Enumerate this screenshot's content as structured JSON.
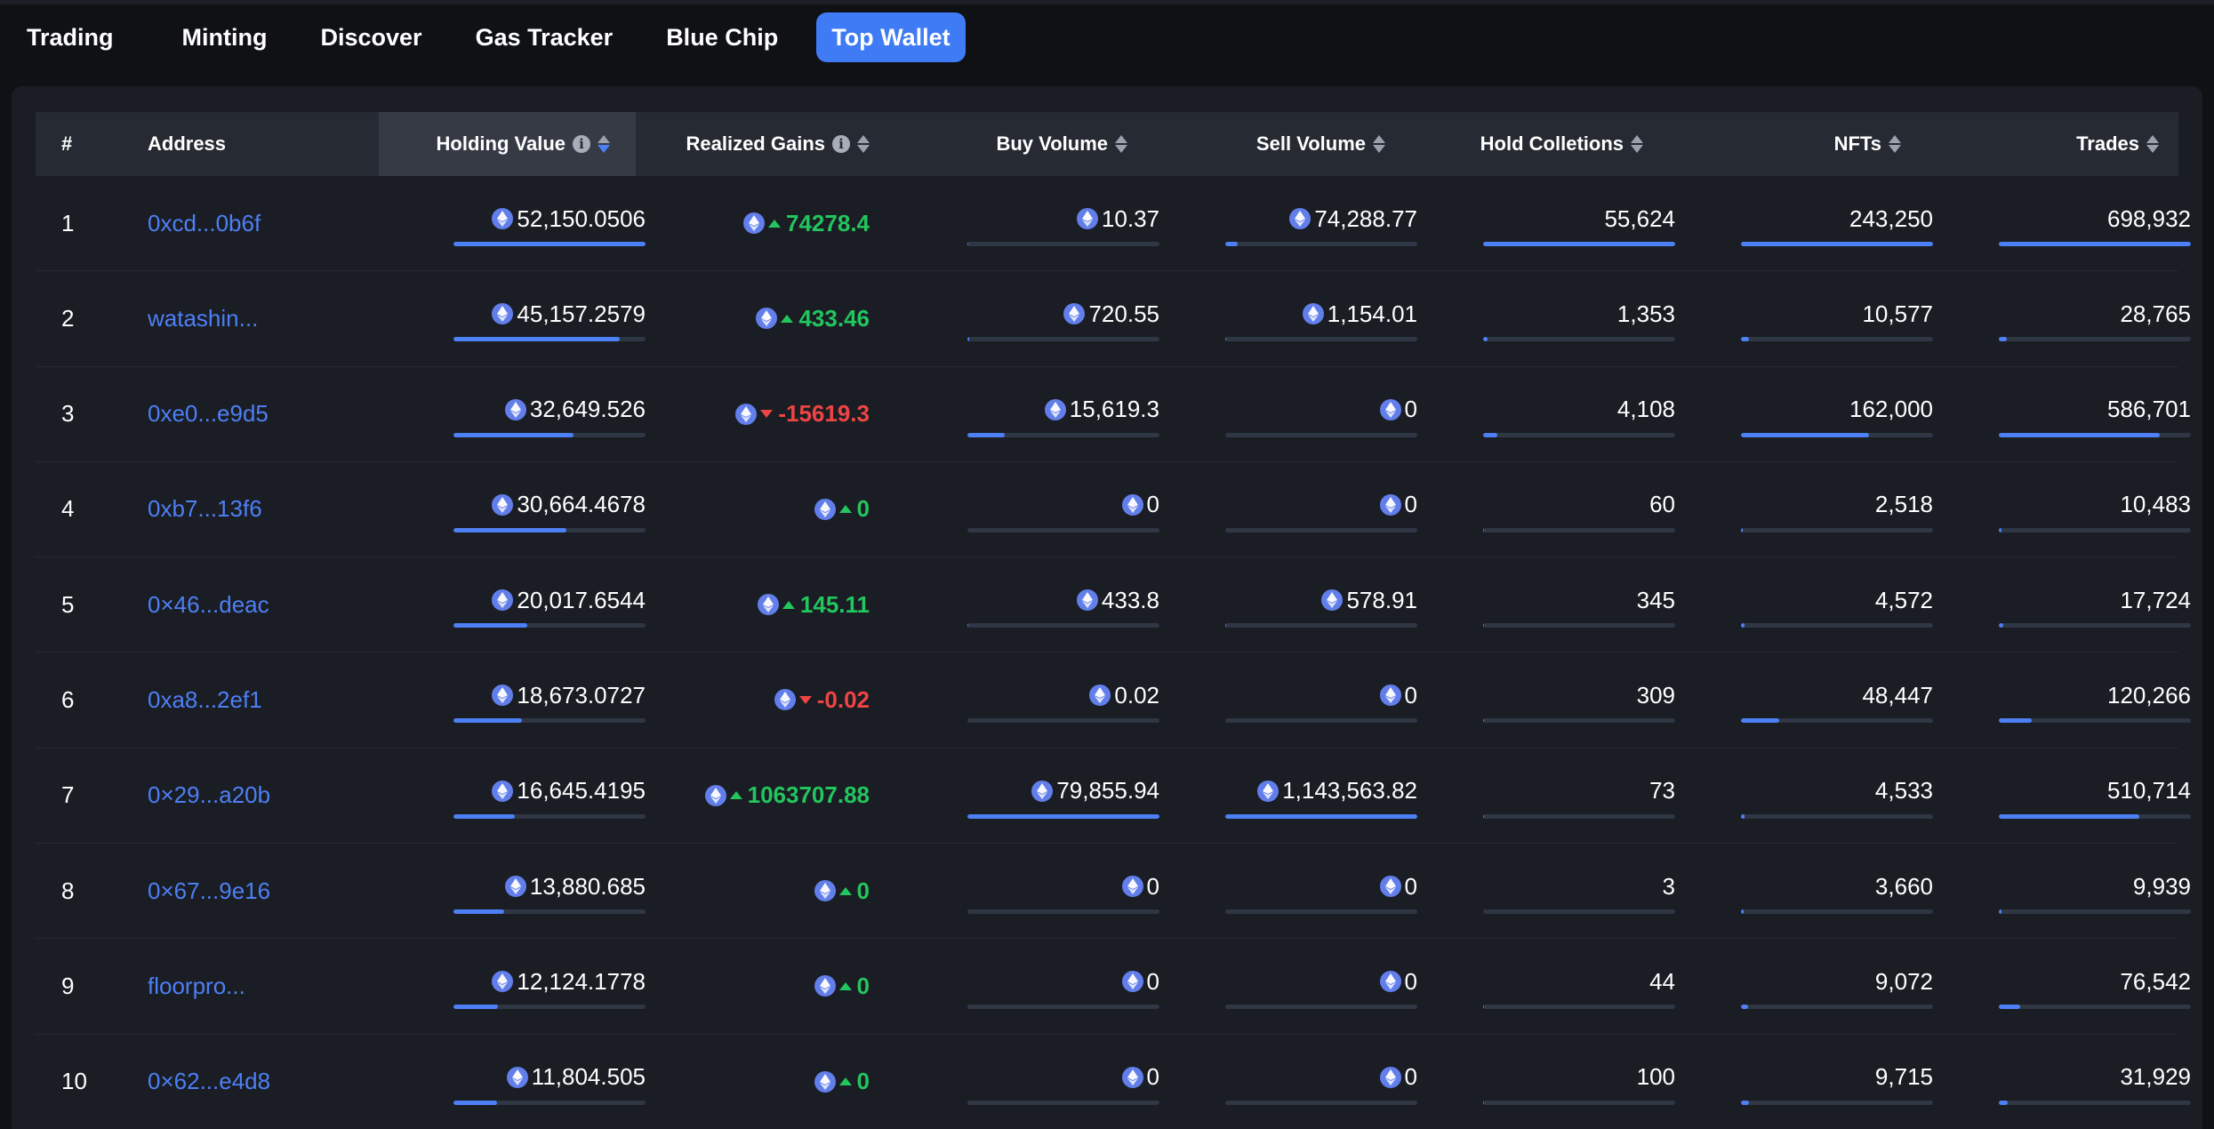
{
  "nav": {
    "tabs": [
      {
        "label": "Trading"
      },
      {
        "label": "Minting"
      },
      {
        "label": "Discover"
      },
      {
        "label": "Gas Tracker"
      },
      {
        "label": "Blue Chip"
      },
      {
        "label": "Top Wallet"
      }
    ],
    "active": "Top Wallet"
  },
  "colors": {
    "accent": "#3f7bf4",
    "link": "#4d7ff5",
    "positive": "#22c55e",
    "negative": "#ef4444",
    "background": "#0f1115",
    "panel": "#1a1d24"
  },
  "table": {
    "headers": {
      "rank": "#",
      "address": "Address",
      "holding_value": "Holding Value",
      "realized_gains": "Realized Gains",
      "buy_volume": "Buy Volume",
      "sell_volume": "Sell Volume",
      "hold_collections": "Hold Colletions",
      "nfts": "NFTs",
      "trades": "Trades"
    },
    "sorted_by": "holding_value",
    "rows": [
      {
        "rank": "1",
        "address": "0xcd...0b6f",
        "holding_value": "52,150.0506",
        "holding_pct": 1.0,
        "gains": "74278.4",
        "gains_dir": "up",
        "buy": "10.37",
        "buy_pct": 0.001,
        "sell": "74,288.77",
        "sell_pct": 0.065,
        "collections": "55,624",
        "collections_pct": 1.0,
        "nfts": "243,250",
        "nfts_pct": 1.0,
        "trades": "698,932",
        "trades_pct": 1.0
      },
      {
        "rank": "2",
        "address": "watashin...",
        "holding_value": "45,157.2579",
        "holding_pct": 0.866,
        "gains": "433.46",
        "gains_dir": "up",
        "buy": "720.55",
        "buy_pct": 0.009,
        "sell": "1,154.01",
        "sell_pct": 0.001,
        "collections": "1,353",
        "collections_pct": 0.024,
        "nfts": "10,577",
        "nfts_pct": 0.043,
        "trades": "28,765",
        "trades_pct": 0.041
      },
      {
        "rank": "3",
        "address": "0xe0...e9d5",
        "holding_value": "32,649.526",
        "holding_pct": 0.626,
        "gains": "-15619.3",
        "gains_dir": "down",
        "buy": "15,619.3",
        "buy_pct": 0.196,
        "sell": "0",
        "sell_pct": 0,
        "collections": "4,108",
        "collections_pct": 0.074,
        "nfts": "162,000",
        "nfts_pct": 0.666,
        "trades": "586,701",
        "trades_pct": 0.839
      },
      {
        "rank": "4",
        "address": "0xb7...13f6",
        "holding_value": "30,664.4678",
        "holding_pct": 0.588,
        "gains": "0",
        "gains_dir": "up",
        "buy": "0",
        "buy_pct": 0,
        "sell": "0",
        "sell_pct": 0,
        "collections": "60",
        "collections_pct": 0.001,
        "nfts": "2,518",
        "nfts_pct": 0.01,
        "trades": "10,483",
        "trades_pct": 0.015
      },
      {
        "rank": "5",
        "address": "0×46...deac",
        "holding_value": "20,017.6544",
        "holding_pct": 0.384,
        "gains": "145.11",
        "gains_dir": "up",
        "buy": "433.8",
        "buy_pct": 0.005,
        "sell": "578.91",
        "sell_pct": 0.001,
        "collections": "345",
        "collections_pct": 0.006,
        "nfts": "4,572",
        "nfts_pct": 0.019,
        "trades": "17,724",
        "trades_pct": 0.025
      },
      {
        "rank": "6",
        "address": "0xa8...2ef1",
        "holding_value": "18,673.0727",
        "holding_pct": 0.358,
        "gains": "-0.02",
        "gains_dir": "down",
        "buy": "0.02",
        "buy_pct": 0,
        "sell": "0",
        "sell_pct": 0,
        "collections": "309",
        "collections_pct": 0.006,
        "nfts": "48,447",
        "nfts_pct": 0.199,
        "trades": "120,266",
        "trades_pct": 0.172
      },
      {
        "rank": "7",
        "address": "0×29...a20b",
        "holding_value": "16,645.4195",
        "holding_pct": 0.319,
        "gains": "1063707.88",
        "gains_dir": "up",
        "buy": "79,855.94",
        "buy_pct": 1.0,
        "sell": "1,143,563.82",
        "sell_pct": 1.0,
        "collections": "73",
        "collections_pct": 0.001,
        "nfts": "4,533",
        "nfts_pct": 0.019,
        "trades": "510,714",
        "trades_pct": 0.731
      },
      {
        "rank": "8",
        "address": "0×67...9e16",
        "holding_value": "13,880.685",
        "holding_pct": 0.266,
        "gains": "0",
        "gains_dir": "up",
        "buy": "0",
        "buy_pct": 0,
        "sell": "0",
        "sell_pct": 0,
        "collections": "3",
        "collections_pct": 0,
        "nfts": "3,660",
        "nfts_pct": 0.015,
        "trades": "9,939",
        "trades_pct": 0.014
      },
      {
        "rank": "9",
        "address": "floorpro...",
        "holding_value": "12,124.1778",
        "holding_pct": 0.232,
        "gains": "0",
        "gains_dir": "up",
        "buy": "0",
        "buy_pct": 0,
        "sell": "0",
        "sell_pct": 0,
        "collections": "44",
        "collections_pct": 0.001,
        "nfts": "9,072",
        "nfts_pct": 0.037,
        "trades": "76,542",
        "trades_pct": 0.11
      },
      {
        "rank": "10",
        "address": "0×62...e4d8",
        "holding_value": "11,804.505",
        "holding_pct": 0.226,
        "gains": "0",
        "gains_dir": "up",
        "buy": "0",
        "buy_pct": 0,
        "sell": "0",
        "sell_pct": 0,
        "collections": "100",
        "collections_pct": 0.002,
        "nfts": "9,715",
        "nfts_pct": 0.04,
        "trades": "31,929",
        "trades_pct": 0.046
      }
    ]
  }
}
